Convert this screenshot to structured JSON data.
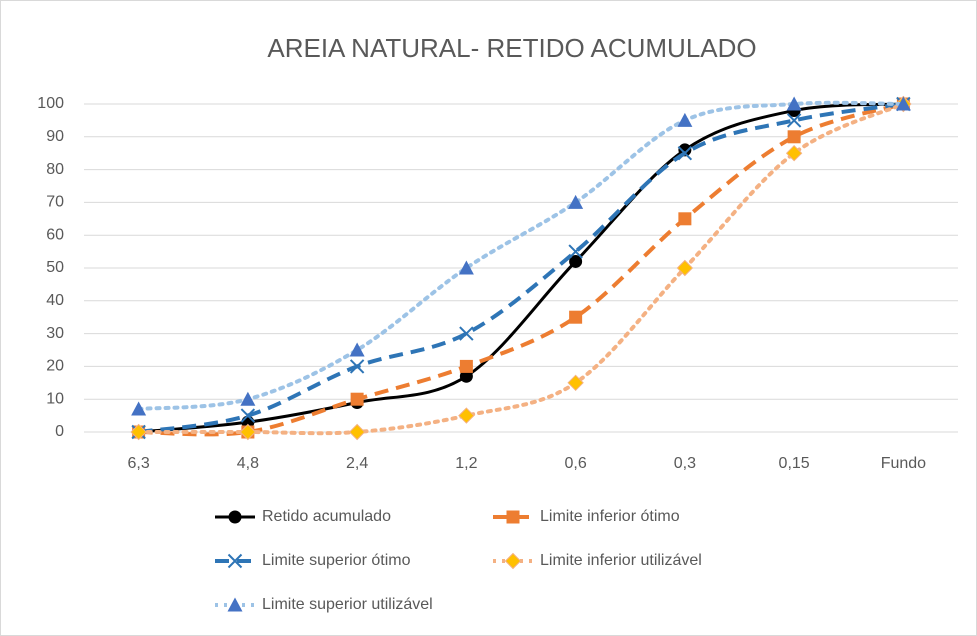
{
  "chart_data": {
    "type": "line",
    "title": "AREIA NATURAL- RETIDO ACUMULADO",
    "categories": [
      "6,3",
      "4,8",
      "2,4",
      "1,2",
      "0,6",
      "0,3",
      "0,15",
      "Fundo"
    ],
    "series": [
      {
        "name": "Retido acumulado",
        "color": "#000000",
        "marker_color": "#000000",
        "dash": "solid",
        "marker": "circle",
        "values": [
          0,
          3,
          9,
          17,
          52,
          86,
          98,
          100
        ]
      },
      {
        "name": "Limite inferior ótimo",
        "color": "#ED7D31",
        "marker_color": "#ED7D31",
        "dash": "dash",
        "marker": "square",
        "values": [
          0,
          0,
          10,
          20,
          35,
          65,
          90,
          100
        ]
      },
      {
        "name": "Limite superior ótimo",
        "color": "#2E75B6",
        "marker_color": "#2E75B6",
        "dash": "dash",
        "marker": "x",
        "values": [
          0,
          5,
          20,
          30,
          55,
          85,
          95,
          100
        ]
      },
      {
        "name": "Limite inferior utilizável",
        "color": "#F4B183",
        "marker_color": "#FFC000",
        "dash": "dot",
        "marker": "diamond",
        "values": [
          0,
          0,
          0,
          5,
          15,
          50,
          85,
          100
        ]
      },
      {
        "name": "Limite superior utilizável",
        "color": "#9DC3E6",
        "marker_color": "#4472C4",
        "dash": "dot",
        "marker": "triangle",
        "values": [
          7,
          10,
          25,
          50,
          70,
          95,
          100,
          100
        ]
      }
    ],
    "ylim": [
      0,
      100
    ],
    "yticks": [
      0,
      10,
      20,
      30,
      40,
      50,
      60,
      70,
      80,
      90,
      100
    ],
    "grid": true,
    "smooth": true,
    "legend": "bottom"
  }
}
